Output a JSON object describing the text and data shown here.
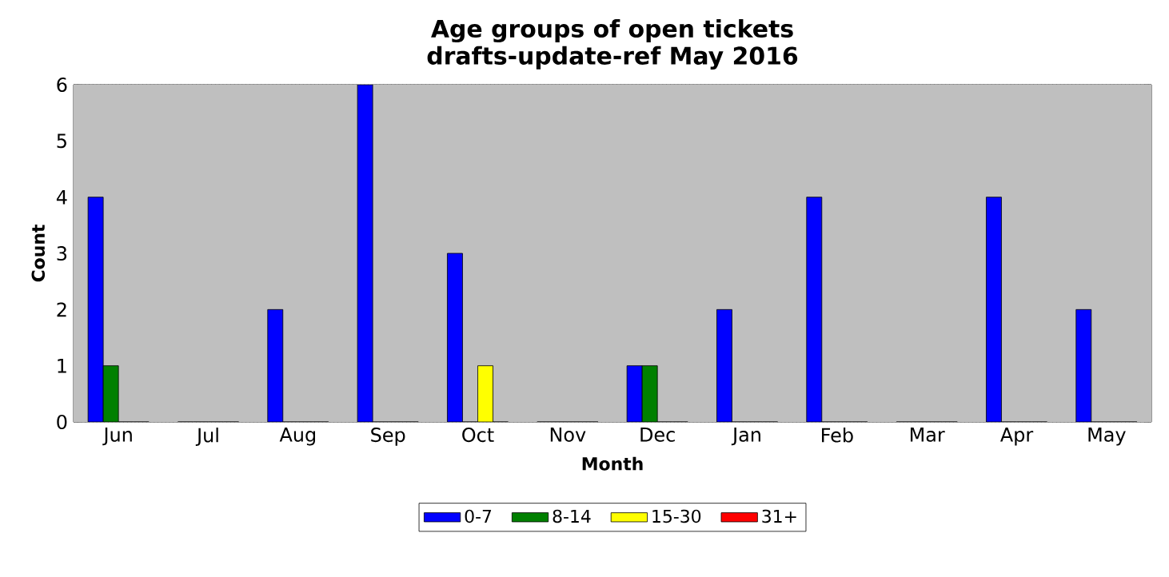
{
  "chart_data": {
    "type": "bar",
    "title": "Age groups of open tickets",
    "subtitle": "drafts-update-ref May 2016",
    "xlabel": "Month",
    "ylabel": "Count",
    "categories": [
      "Jun",
      "Jul",
      "Aug",
      "Sep",
      "Oct",
      "Nov",
      "Dec",
      "Jan",
      "Feb",
      "Mar",
      "Apr",
      "May"
    ],
    "series": [
      {
        "name": "0-7",
        "color": "#0000ff",
        "values": [
          4,
          0,
          2,
          6,
          3,
          0,
          1,
          2,
          4,
          0,
          4,
          2
        ]
      },
      {
        "name": "8-14",
        "color": "#008000",
        "values": [
          1,
          0,
          0,
          0,
          0,
          0,
          1,
          0,
          0,
          0,
          0,
          0
        ]
      },
      {
        "name": "15-30",
        "color": "#ffff00",
        "values": [
          0,
          0,
          0,
          0,
          1,
          0,
          0,
          0,
          0,
          0,
          0,
          0
        ]
      },
      {
        "name": "31+",
        "color": "#ff0000",
        "values": [
          0,
          0,
          0,
          0,
          0,
          0,
          0,
          0,
          0,
          0,
          0,
          0
        ]
      }
    ],
    "ylim": [
      0,
      6
    ],
    "yticks": [
      0,
      1,
      2,
      3,
      4,
      5,
      6
    ],
    "grid": "y",
    "legend": "bottom"
  }
}
